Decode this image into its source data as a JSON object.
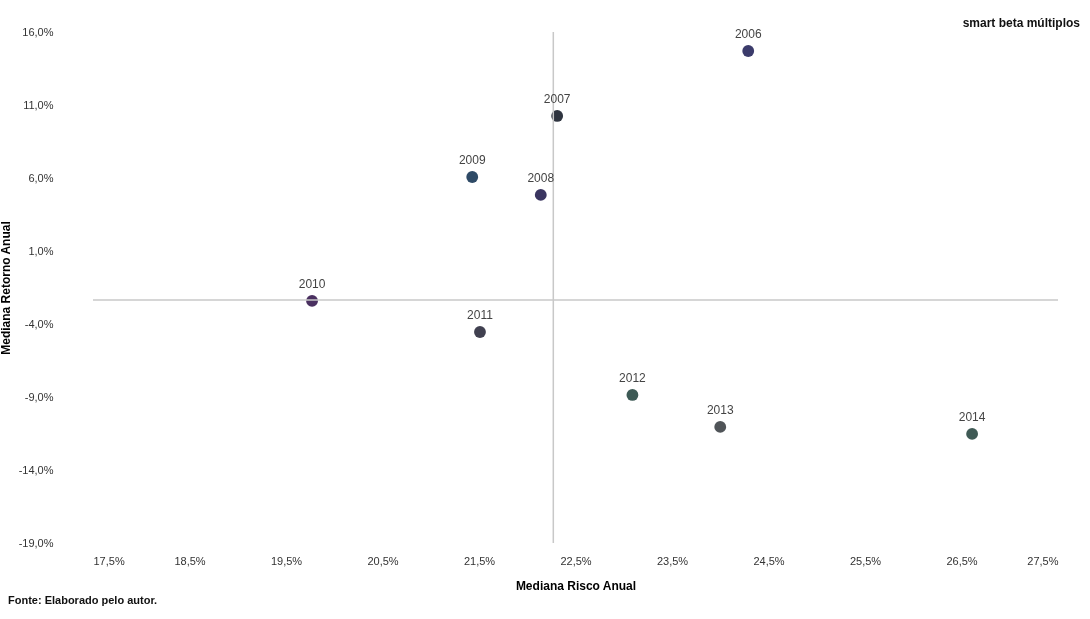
{
  "chart_data": {
    "type": "scatter",
    "title": "smart beta múltiplos",
    "xlabel": "Mediana Risco Anual",
    "ylabel": "Mediana Retorno Anual",
    "x": [
      24.29,
      22.31,
      22.14,
      21.43,
      19.77,
      21.51,
      23.09,
      24.0,
      26.61
    ],
    "values": [
      14.7,
      10.25,
      4.84,
      6.07,
      -2.42,
      -4.55,
      -8.86,
      -11.05,
      -11.53
    ],
    "colors": [
      "#3b3b6b",
      "#2f3540",
      "#3a3560",
      "#2e4a66",
      "#4a3060",
      "#404050",
      "#3d5a55",
      "#505458",
      "#3f5a55"
    ],
    "marker": "circle",
    "xlim": [
      17.5,
      27.5
    ],
    "xticks": [
      {
        "value": 17.5,
        "label": "17,5%"
      },
      {
        "value": 18.5,
        "label": "18,5%"
      },
      {
        "value": 19.5,
        "label": "19,5%"
      },
      {
        "value": 20.5,
        "label": "20,5%"
      },
      {
        "value": 21.5,
        "label": "21,5%"
      },
      {
        "value": 22.5,
        "label": "22,5%"
      },
      {
        "value": 23.5,
        "label": "23,5%"
      },
      {
        "value": 24.5,
        "label": "24,5%"
      },
      {
        "value": 25.5,
        "label": "25,5%"
      },
      {
        "value": 26.5,
        "label": "26,5%"
      },
      {
        "value": 27.5,
        "label": "27,5%"
      }
    ],
    "ylim": [
      -19,
      16
    ],
    "yticks": [
      {
        "value": -19,
        "label": "-19,0%"
      },
      {
        "value": -14,
        "label": "-14,0%"
      },
      {
        "value": -9,
        "label": "-9,0%"
      },
      {
        "value": -4,
        "label": "-4,0%"
      },
      {
        "value": 1,
        "label": "1,0%"
      },
      {
        "value": 6,
        "label": "6,0%"
      },
      {
        "value": 11,
        "label": "11,0%"
      },
      {
        "value": 16,
        "label": "16,0%"
      }
    ],
    "ref_lines": [
      {
        "axis": "x",
        "value": 22.27,
        "color": "#c8c8c8"
      },
      {
        "axis": "y",
        "value": -2.36,
        "color": "#c8c8c8"
      }
    ],
    "annotations": [
      {
        "text": "2006",
        "x": 24.29,
        "y": 14.7
      },
      {
        "text": "2007",
        "x": 22.31,
        "y": 10.25
      },
      {
        "text": "2008",
        "x": 22.14,
        "y": 4.84
      },
      {
        "text": "2009",
        "x": 21.43,
        "y": 6.07
      },
      {
        "text": "2010",
        "x": 19.77,
        "y": -2.42
      },
      {
        "text": "2011",
        "x": 21.51,
        "y": -4.55
      },
      {
        "text": "2012",
        "x": 23.09,
        "y": -8.86
      },
      {
        "text": "2013",
        "x": 24.0,
        "y": -11.05
      },
      {
        "text": "2014",
        "x": 26.61,
        "y": -11.53
      },
      "Fonte: Elaborado pelo autor."
    ],
    "grid": false
  }
}
